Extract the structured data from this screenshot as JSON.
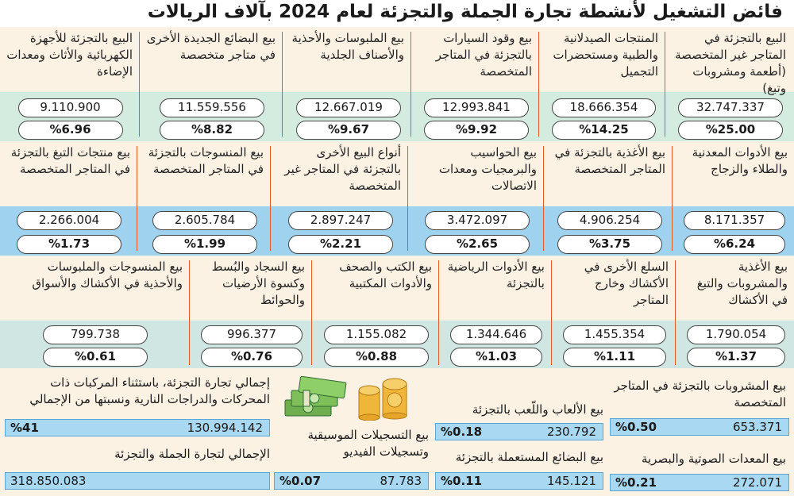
{
  "title": "فائض التشغيل لأنشطة تجارة الجملة والتجزئة لعام 2024 بآلاف الريالات",
  "row1": [
    {
      "label": "البيع بالتجزئة في المتاجر غير المتخصصة (أطعمة ومشروبات وتبغ)",
      "value": "32.747.337",
      "pct": "%25.00"
    },
    {
      "label": "المنتجات الصيدلانية والطبية ومستحضرات التجميل",
      "value": "18.666.354",
      "pct": "%14.25"
    },
    {
      "label": "بيع وقود السيارات بالتجزئة في المتاجر المتخصصة",
      "value": "12.993.841",
      "pct": "%9.92"
    },
    {
      "label": "بيع الملبوسات والأحذية والأصناف الجلدية",
      "value": "12.667.019",
      "pct": "%9.67"
    },
    {
      "label": "بيع البضائع الجديدة الأخرى في متاجر متخصصة",
      "value": "11.559.556",
      "pct": "%8.82"
    },
    {
      "label": "البيع بالتجزئة للأجهزة الكهربائية والأثاث ومعدات الإضاءة",
      "value": "9.110.900",
      "pct": "%6.96"
    }
  ],
  "row2": [
    {
      "label": "بيع الأدوات المعدنية والطلاء والزجاج",
      "value": "8.171.357",
      "pct": "%6.24"
    },
    {
      "label": "بيع الأغذية بالتجزئة في المتاجر المتخصصة",
      "value": "4.906.254",
      "pct": "%3.75"
    },
    {
      "label": "بيع الحواسيب والبرمجيات ومعدات الاتصالات",
      "value": "3.472.097",
      "pct": "%2.65"
    },
    {
      "label": "أنواع البيع الأخرى بالتجزئة في المتاجر غير المتخصصة",
      "value": "2.897.247",
      "pct": "%2.21"
    },
    {
      "label": "بيع المنسوجات بالتجزئة في المتاجر المتخصصة",
      "value": "2.605.784",
      "pct": "%1.99"
    },
    {
      "label": "بيع منتجات التبغ بالتجزئة في المتاجر المتخصصة",
      "value": "2.266.004",
      "pct": "%1.73"
    }
  ],
  "row3": [
    {
      "label": "بيع الأغذية والمشروبات والتبغ في الأكشاك",
      "value": "1.790.054",
      "pct": "%1.37"
    },
    {
      "label": "السلع الأخرى في الأكشاك وخارج المتاجر",
      "value": "1.455.354",
      "pct": "%1.11"
    },
    {
      "label": "بيع الأدوات الرياضية بالتجزئة",
      "value": "1.344.646",
      "pct": "%1.03"
    },
    {
      "label": "بيع الكتب والصحف والأدوات المكتبية",
      "value": "1.155.082",
      "pct": "%0.88"
    },
    {
      "label": "بيع السجاد والبُسط وكسوة الأرضيات والحوائط",
      "value": "996.377",
      "pct": "%0.76"
    },
    {
      "label": "بيع المنسوجات والملبوسات والأحذية في الأكشاك والأسواق",
      "value": "799.738",
      "pct": "%0.61"
    }
  ],
  "bottom": {
    "beverages": {
      "label": "بيع المشروبات بالتجزئة في المتاجر المتخصصة",
      "value": "653.371",
      "pct": "%0.50"
    },
    "audio": {
      "label": "بيع المعدات الصوتية والبصرية",
      "value": "272.071",
      "pct": "%0.21"
    },
    "toys": {
      "label": "بيع الألعاب واللّعب بالتجزئة",
      "value": "230.792",
      "pct": "%0.18"
    },
    "used": {
      "label": "بيع البضائع المستعملة بالتجزئة",
      "value": "145.121",
      "pct": "%0.11"
    },
    "music": {
      "label": "بيع التسجيلات الموسيقية وتسجيلات الفيديو",
      "value": "87.783",
      "pct": "%0.07"
    },
    "retail_total": {
      "label": "إجمالي تجارة التجزئة، باستثناء المركبات ذات المحركات والدراجات النارية ونسبتها من الإجمالي",
      "value": "130.994.142",
      "pct": "%41"
    },
    "grand_total": {
      "label": "الإجمالي لتجارة الجملة والتجزئة",
      "value": "318.850.083"
    }
  },
  "icons": [
    "money-stack-icon",
    "coins-icon"
  ],
  "colors": {
    "band_light": "#fbf2e4",
    "green": "#d4ebe0",
    "blue": "#9fd2ee",
    "teal": "#cfe6e2",
    "separator": "#e05a2b",
    "bar": "#a9d8f2"
  }
}
